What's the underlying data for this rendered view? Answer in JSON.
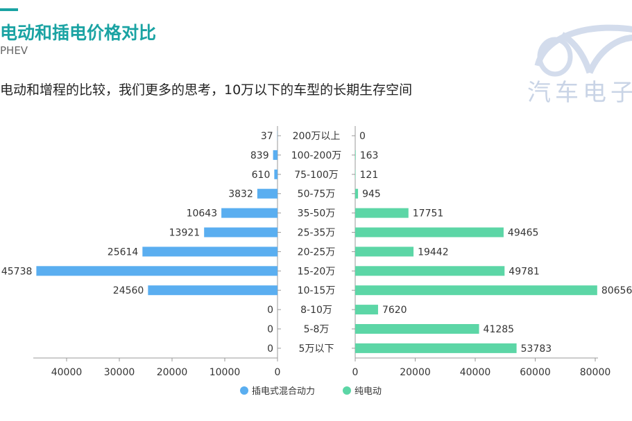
{
  "header": {
    "title": "电动和插电价格对比",
    "subtitle": "PHEV",
    "description": "电动和增程的比较，我们更多的思考，10万以下的车型的长期生存空间"
  },
  "logo": {
    "text": "汽车电子",
    "color": "#c9d4e6"
  },
  "chart_data": {
    "type": "bar",
    "orientation": "horizontal-butterfly",
    "categories": [
      "200万以上",
      "100-200万",
      "75-100万",
      "50-75万",
      "35-50万",
      "25-35万",
      "20-25万",
      "15-20万",
      "10-15万",
      "8-10万",
      "5-8万",
      "5万以下"
    ],
    "series": [
      {
        "name": "插电式混合动力",
        "color": "#5aaef0",
        "values": [
          37,
          839,
          610,
          3832,
          10643,
          13921,
          25614,
          45738,
          24560,
          0,
          0,
          0
        ],
        "xlim": [
          0,
          46000
        ],
        "ticks": [
          0,
          10000,
          20000,
          30000,
          40000
        ],
        "tick_labels": [
          "0",
          "10000",
          "20000",
          "30000",
          "40000"
        ],
        "direction": "left"
      },
      {
        "name": "纯电动",
        "color": "#5cd6a6",
        "values": [
          0,
          163,
          121,
          945,
          17751,
          49465,
          19442,
          49781,
          80656,
          7620,
          41285,
          53783
        ],
        "xlim": [
          0,
          80000
        ],
        "ticks": [
          0,
          20000,
          40000,
          60000,
          80000
        ],
        "tick_labels": [
          "0",
          "20000",
          "40000",
          "60000",
          "80000"
        ],
        "direction": "right"
      }
    ],
    "legend": "bottom-center",
    "grid": false
  }
}
